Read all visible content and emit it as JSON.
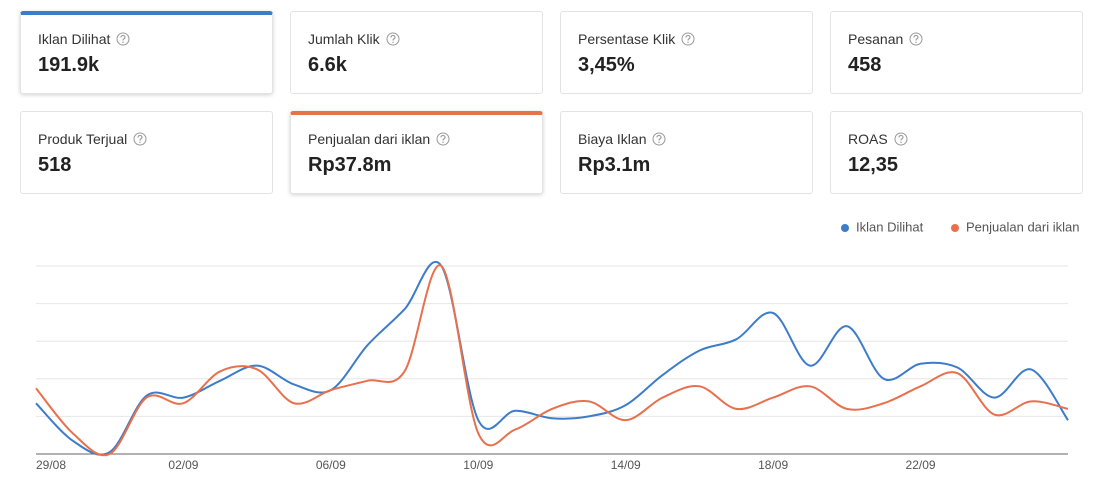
{
  "cards": [
    {
      "label": "Iklan Dilihat",
      "value": "191.9k",
      "accent": "#3d7cc9"
    },
    {
      "label": "Jumlah Klik",
      "value": "6.6k"
    },
    {
      "label": "Persentase Klik",
      "value": "3,45%"
    },
    {
      "label": "Pesanan",
      "value": "458"
    },
    {
      "label": "Produk Terjual",
      "value": "518"
    },
    {
      "label": "Penjualan dari iklan",
      "value": "Rp37.8m",
      "accent": "#e8704d"
    },
    {
      "label": "Biaya Iklan",
      "value": "Rp3.1m"
    },
    {
      "label": "ROAS",
      "value": "12,35"
    }
  ],
  "chart_data": {
    "type": "line",
    "grid": true,
    "legend": "top-right",
    "categories": [
      "29/08",
      null,
      null,
      null,
      "02/09",
      null,
      null,
      null,
      "06/09",
      null,
      null,
      null,
      "10/09",
      null,
      null,
      null,
      "14/09",
      null,
      null,
      null,
      "18/09",
      null,
      null,
      null,
      "22/09",
      null,
      null,
      null,
      null
    ],
    "ylim": [
      0,
      100
    ],
    "series": [
      {
        "name": "Iklan Dilihat",
        "color": "#3d7cc9",
        "values": [
          27,
          7,
          1,
          31,
          30,
          39,
          47,
          37,
          34,
          58,
          77,
          100,
          18,
          23,
          19,
          20,
          26,
          42,
          55,
          61,
          75,
          47,
          68,
          40,
          48,
          46,
          30,
          45,
          18
        ]
      },
      {
        "name": "Penjualan dari iklan",
        "color": "#e8704d",
        "values": [
          35,
          11,
          0,
          30,
          27,
          44,
          45,
          27,
          34,
          39,
          44,
          100,
          11,
          13,
          24,
          28,
          18,
          30,
          36,
          24,
          30,
          36,
          24,
          27,
          36,
          43,
          21,
          28,
          24
        ]
      }
    ]
  }
}
